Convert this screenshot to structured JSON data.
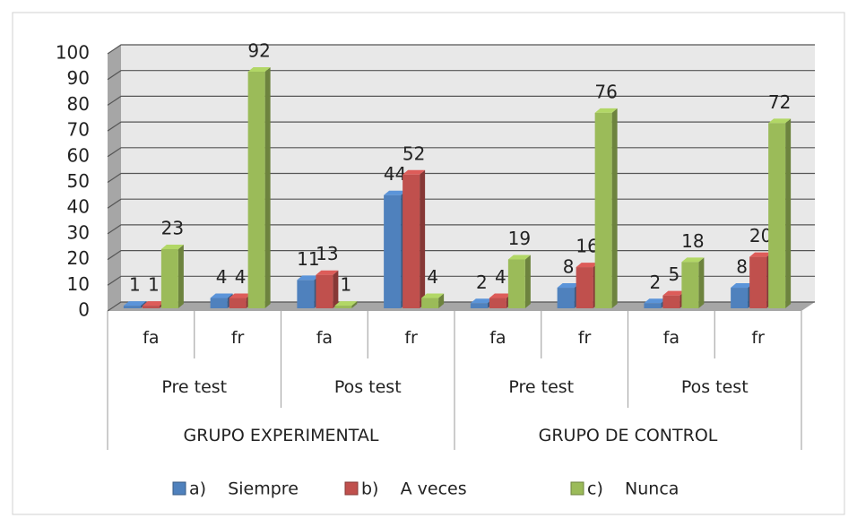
{
  "chart_data": {
    "type": "bar3d",
    "categories": [
      "fa",
      "fr",
      "fa",
      "fr",
      "fa",
      "fr",
      "fa",
      "fr"
    ],
    "subgroups": [
      "Pre test",
      "Pos test",
      "Pre test",
      "Pos test"
    ],
    "groups": [
      "GRUPO EXPERIMENTAL",
      "GRUPO DE CONTROL"
    ],
    "series": [
      {
        "name": "a)    Siempre",
        "color": "#4f81bd",
        "values": [
          1,
          4,
          11,
          44,
          2,
          8,
          2,
          8
        ]
      },
      {
        "name": "b)    A veces",
        "color": "#c0504d",
        "values": [
          1,
          4,
          13,
          52,
          4,
          16,
          5,
          20
        ]
      },
      {
        "name": "c)    Nunca",
        "color": "#9bbb59",
        "values": [
          23,
          92,
          1,
          4,
          19,
          76,
          18,
          72
        ]
      }
    ],
    "ylim": [
      0,
      100
    ],
    "yticks": [
      0,
      10,
      20,
      30,
      40,
      50,
      60,
      70,
      80,
      90,
      100
    ],
    "grid": true,
    "legend": "bottom"
  }
}
